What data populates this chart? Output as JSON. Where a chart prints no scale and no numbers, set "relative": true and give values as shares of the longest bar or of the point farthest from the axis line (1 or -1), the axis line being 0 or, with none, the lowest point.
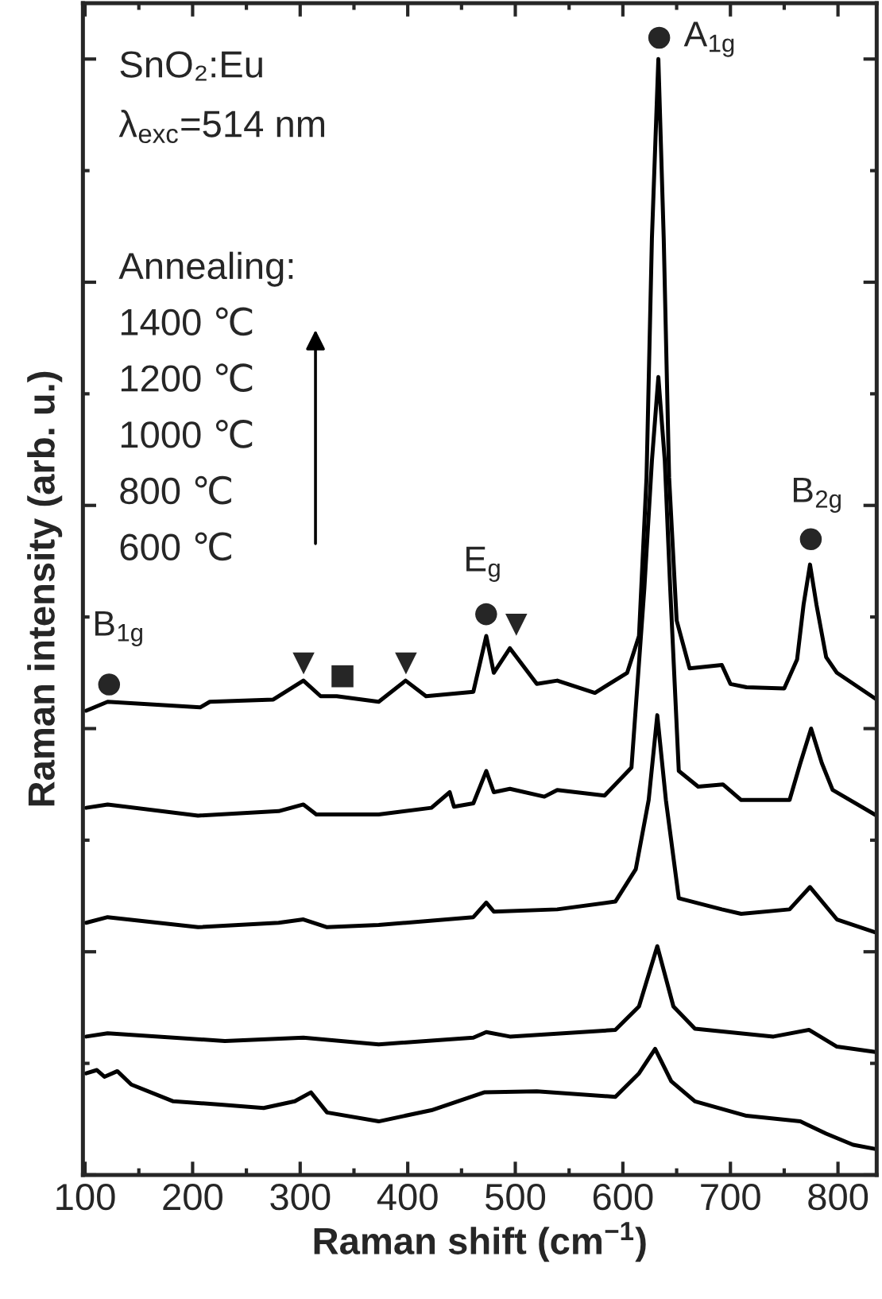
{
  "chart_data": {
    "type": "line",
    "relative": true,
    "xlabel": "Raman shift (cm$^{−1}$)",
    "ylabel": "Raman intensity (arb. u.)",
    "xlim": [
      98,
      836
    ],
    "xticks": [
      100,
      200,
      300,
      400,
      500,
      600,
      700,
      800
    ],
    "grid": false,
    "legend": false,
    "marker": "none",
    "line_style": "solid",
    "annotations": [
      "SnO₂:Eu",
      "λ$_{exc}$=514 nm",
      "Annealing:",
      "1400 ℃",
      "1200 ℃",
      "1000 ℃",
      "800 ℃",
      "600 ℃",
      "●",
      "B$_{1g}$",
      "▼",
      "■",
      "▼",
      "●",
      "E$_{g}$",
      "▼",
      "●",
      "A$_{1g}$",
      "●",
      "B$_{2g}$"
    ],
    "series": [
      {
        "color": "#000000",
        "x": [
          101,
          121,
          207,
          216,
          275,
          303,
          319,
          334,
          373,
          398,
          417,
          461,
          473,
          480,
          495,
          520,
          539,
          574,
          604,
          615,
          622,
          627,
          633,
          638,
          643,
          650,
          662,
          692,
          700,
          715,
          750,
          762,
          768,
          774,
          780,
          789,
          799,
          836
        ],
        "values": [
          0.416,
          0.424,
          0.419,
          0.424,
          0.426,
          0.443,
          0.429,
          0.429,
          0.424,
          0.443,
          0.429,
          0.433,
          0.483,
          0.45,
          0.472,
          0.44,
          0.443,
          0.432,
          0.45,
          0.483,
          0.625,
          0.839,
          1.0,
          0.839,
          0.625,
          0.497,
          0.454,
          0.457,
          0.44,
          0.437,
          0.436,
          0.462,
          0.511,
          0.547,
          0.511,
          0.464,
          0.45,
          0.426
        ]
      },
      {
        "color": "#000000",
        "x": [
          101,
          121,
          205,
          280,
          303,
          315,
          373,
          422,
          439,
          443,
          461,
          473,
          480,
          495,
          527,
          539,
          583,
          608,
          620,
          627,
          633,
          639,
          644,
          652,
          670,
          693,
          710,
          755,
          765,
          775,
          785,
          795,
          836
        ],
        "values": [
          0.329,
          0.332,
          0.322,
          0.326,
          0.332,
          0.323,
          0.323,
          0.329,
          0.343,
          0.33,
          0.333,
          0.362,
          0.343,
          0.346,
          0.339,
          0.345,
          0.34,
          0.365,
          0.526,
          0.64,
          0.715,
          0.64,
          0.526,
          0.362,
          0.348,
          0.35,
          0.336,
          0.336,
          0.369,
          0.4,
          0.369,
          0.345,
          0.322
        ]
      },
      {
        "color": "#000000",
        "x": [
          101,
          121,
          205,
          280,
          303,
          325,
          373,
          461,
          473,
          480,
          539,
          593,
          612,
          624,
          632,
          640,
          652,
          692,
          710,
          755,
          774,
          799,
          836
        ],
        "values": [
          0.226,
          0.231,
          0.222,
          0.226,
          0.229,
          0.222,
          0.224,
          0.231,
          0.244,
          0.236,
          0.238,
          0.245,
          0.274,
          0.336,
          0.412,
          0.336,
          0.248,
          0.238,
          0.234,
          0.238,
          0.258,
          0.229,
          0.217
        ]
      },
      {
        "color": "#000000",
        "x": [
          101,
          121,
          230,
          303,
          373,
          461,
          473,
          495,
          593,
          615,
          632,
          647,
          667,
          740,
          773,
          799,
          836
        ],
        "values": [
          0.124,
          0.127,
          0.12,
          0.123,
          0.117,
          0.123,
          0.128,
          0.124,
          0.13,
          0.151,
          0.205,
          0.151,
          0.131,
          0.124,
          0.13,
          0.115,
          0.11
        ]
      },
      {
        "color": "#000000",
        "x": [
          101,
          111,
          118,
          130,
          143,
          182,
          226,
          266,
          295,
          310,
          325,
          373,
          422,
          471,
          520,
          593,
          615,
          630,
          645,
          667,
          715,
          765,
          789,
          814,
          836
        ],
        "values": [
          0.091,
          0.094,
          0.088,
          0.093,
          0.081,
          0.066,
          0.063,
          0.06,
          0.066,
          0.074,
          0.056,
          0.048,
          0.058,
          0.074,
          0.075,
          0.07,
          0.091,
          0.113,
          0.084,
          0.066,
          0.053,
          0.048,
          0.037,
          0.027,
          0.023
        ]
      }
    ]
  }
}
